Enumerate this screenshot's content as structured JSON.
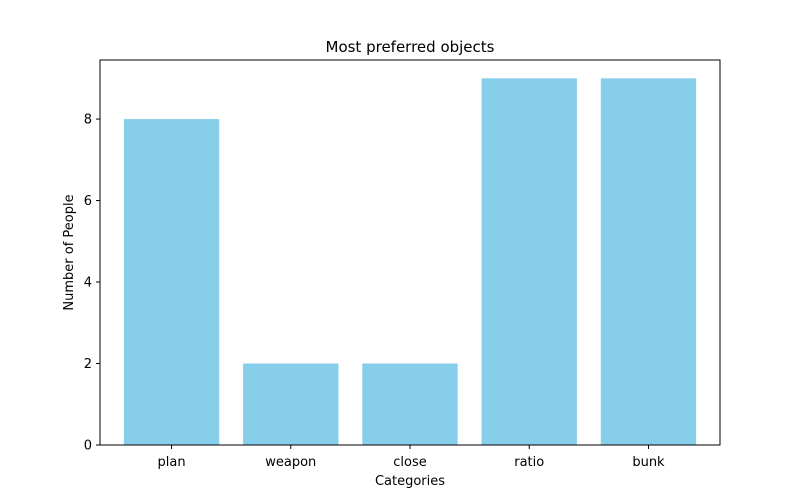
{
  "chart_data": {
    "type": "bar",
    "title": "Most preferred objects",
    "xlabel": "Categories",
    "ylabel": "Number of People",
    "categories": [
      "plan",
      "weapon",
      "close",
      "ratio",
      "bunk"
    ],
    "values": [
      8,
      2,
      2,
      9,
      9
    ],
    "ylim": [
      0,
      9.45
    ],
    "yticks": [
      0,
      2,
      4,
      6,
      8
    ],
    "bar_color": "#87ceeb",
    "grid": false,
    "legend": "none"
  }
}
